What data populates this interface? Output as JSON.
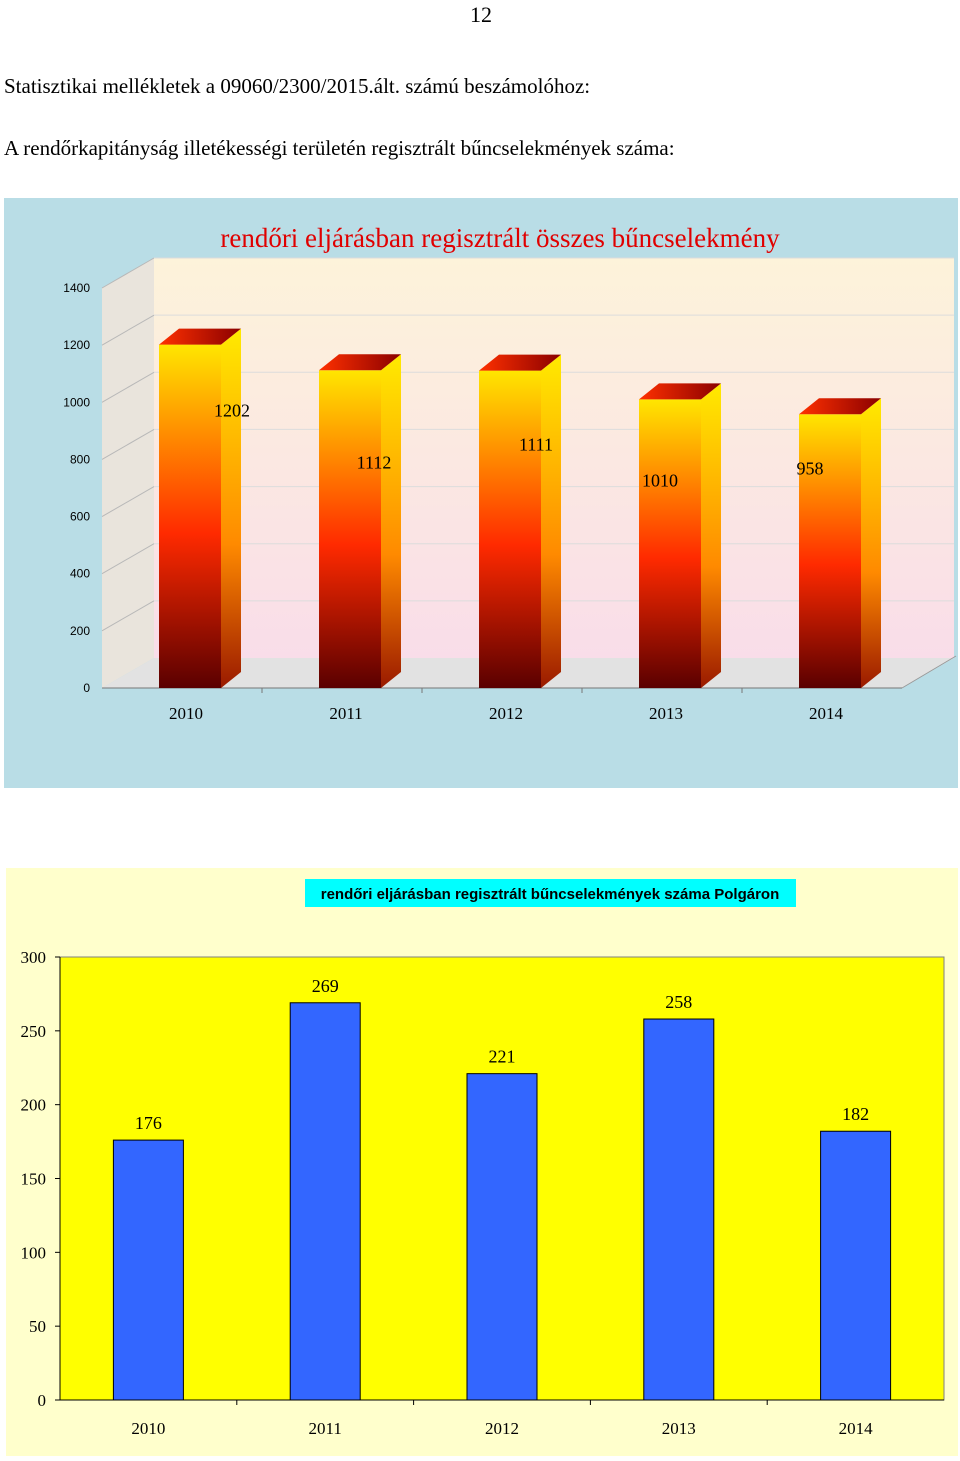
{
  "page": {
    "number": "12",
    "heading_1": "Statisztikai mellékletek a 09060/2300/2015.ált. számú beszámolóhoz:",
    "heading_2": "A rendőrkapitányság illetékességi területén regisztrált bűncselekmények száma:"
  },
  "chart_data": [
    {
      "type": "bar",
      "style": "3d",
      "title": "rendőri eljárásban regisztrált összes bűncselekmény",
      "categories": [
        "2010",
        "2011",
        "2012",
        "2013",
        "2014"
      ],
      "values": [
        1202,
        1112,
        1111,
        1010,
        958
      ],
      "data_labels": [
        "1202",
        "1112",
        "1111",
        "1010",
        "958"
      ],
      "y_ticks": [
        "0",
        "200",
        "400",
        "600",
        "800",
        "1000",
        "1200",
        "1400"
      ],
      "ylim": [
        0,
        1400
      ],
      "grid": true,
      "legend": "none",
      "colors": {
        "outer_background": "#b9dde6",
        "plot_background_top": "#fdf3da",
        "plot_background_bottom": "#f9dde9",
        "bar_top": "#ffe600",
        "bar_mid": "#ff2a00",
        "bar_bottom": "#5a0000",
        "title": "#e00000"
      }
    },
    {
      "type": "bar",
      "title": "rendőri eljárásban regisztrált bűncselekmények száma Polgáron",
      "categories": [
        "2010",
        "2011",
        "2012",
        "2013",
        "2014"
      ],
      "values": [
        176,
        269,
        221,
        258,
        182
      ],
      "data_labels": [
        "176",
        "269",
        "221",
        "258",
        "182"
      ],
      "y_ticks": [
        "0",
        "50",
        "100",
        "150",
        "200",
        "250",
        "300"
      ],
      "ylim": [
        0,
        300
      ],
      "grid": false,
      "legend": "none",
      "colors": {
        "outer_background": "#ffffcc",
        "plot_background": "#ffff00",
        "bar": "#3366ff",
        "title_background": "#00ffff"
      }
    }
  ]
}
